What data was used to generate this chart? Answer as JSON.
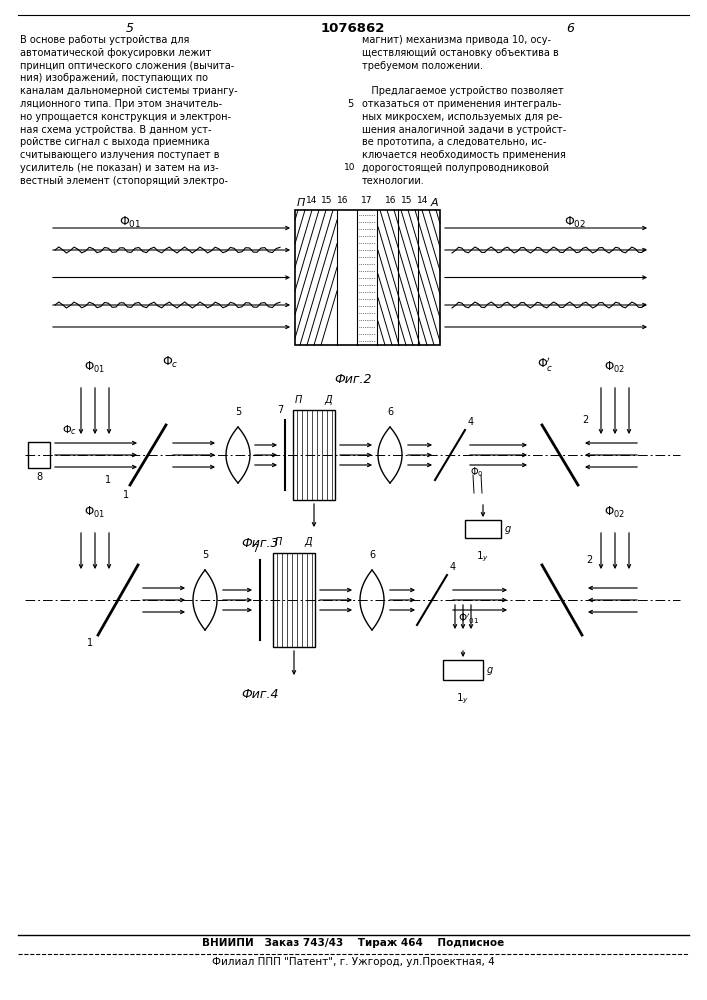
{
  "page_number_left": "5",
  "page_number_right": "6",
  "patent_number": "1076862",
  "fig2_label": "Фиг.2",
  "fig3_label": "Фиг.3",
  "fig4_label": "Фиг.4",
  "text_left": [
    "В основе работы устройства для",
    "автоматической фокусировки лежит",
    "принцип оптического сложения (вычита-",
    "ния) изображений, поступающих по",
    "каналам дальномерной системы триангу-",
    "ляционного типа. При этом значитель-",
    "но упрощается конструкция и электрон-",
    "ная схема устройства. В данном уст-",
    "ройстве сигнал с выхода приемника",
    "считывающего излучения поступает в",
    "усилитель (не показан) и затем на из-",
    "вестный элемент (стопорящий электро-"
  ],
  "text_right": [
    "магнит) механизма привода 10, осу-",
    "ществляющий остановку объектива в",
    "требуемом положении.",
    "",
    "   Предлагаемое устройство позволяет",
    "отказаться от применения интеграль-",
    "ных микросхем, используемых для ре-",
    "шения аналогичной задачи в устройст-",
    "ве прототипа, а следовательно, ис-",
    "ключается необходимость применения",
    "дорогостоящей полупроводниковой",
    "технологии."
  ],
  "footer_line1": "ВНИИПИ   Заказ 743/43    Тираж 464    Подписное",
  "footer_line2": "Филиал ППП \"Патент\", г. Ужгород, ул.Проектная, 4",
  "bg_color": "#ffffff",
  "text_color": "#000000"
}
